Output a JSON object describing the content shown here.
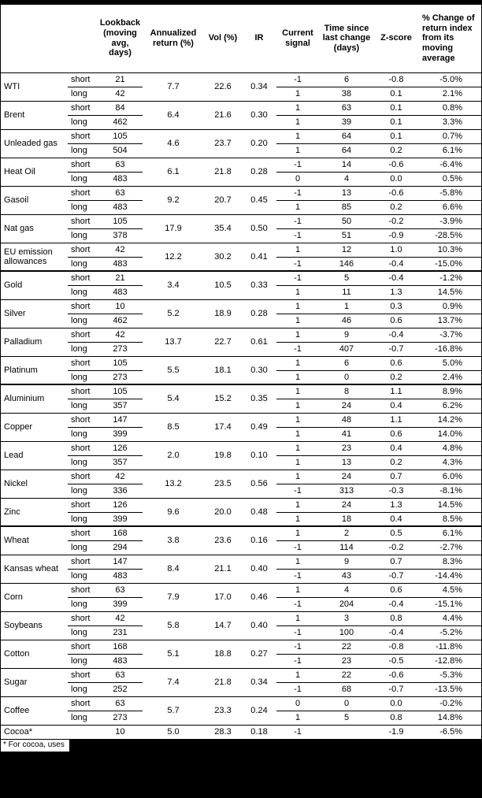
{
  "footnote": "* For cocoa, uses",
  "table": {
    "headers": {
      "commodity": "",
      "leg": "",
      "lookback": "Lookback (moving avg, days)",
      "annualized_return": "Annualized return (%)",
      "vol": "Vol (%)",
      "ir": "IR",
      "current_signal": "Current signal",
      "time_since_last_change": "Time since last change (days)",
      "zscore": "Z-score",
      "pct_change": "% Change of return index from its moving average"
    },
    "groups": [
      [
        {
          "name": "WTI",
          "ret": "7.7",
          "vol": "22.6",
          "ir": "0.34",
          "legs": [
            {
              "label": "short",
              "lookback": "21",
              "signal": "-1",
              "time": "6",
              "z": "-0.8",
              "pct": "-5.0%"
            },
            {
              "label": "long",
              "lookback": "42",
              "signal": "1",
              "time": "38",
              "z": "0.1",
              "pct": "2.1%"
            }
          ]
        },
        {
          "name": "Brent",
          "ret": "6.4",
          "vol": "21.6",
          "ir": "0.30",
          "legs": [
            {
              "label": "short",
              "lookback": "84",
              "signal": "1",
              "time": "63",
              "z": "0.1",
              "pct": "0.8%"
            },
            {
              "label": "long",
              "lookback": "462",
              "signal": "1",
              "time": "39",
              "z": "0.1",
              "pct": "3.3%"
            }
          ]
        },
        {
          "name": "Unleaded gas",
          "ret": "4.6",
          "vol": "23.7",
          "ir": "0.20",
          "legs": [
            {
              "label": "short",
              "lookback": "105",
              "signal": "1",
              "time": "64",
              "z": "0.1",
              "pct": "0.7%"
            },
            {
              "label": "long",
              "lookback": "504",
              "signal": "1",
              "time": "64",
              "z": "0.2",
              "pct": "6.1%"
            }
          ]
        },
        {
          "name": "Heat Oil",
          "ret": "6.1",
          "vol": "21.8",
          "ir": "0.28",
          "legs": [
            {
              "label": "short",
              "lookback": "63",
              "signal": "-1",
              "time": "14",
              "z": "-0.6",
              "pct": "-6.4%"
            },
            {
              "label": "long",
              "lookback": "483",
              "signal": "0",
              "time": "4",
              "z": "0.0",
              "pct": "0.5%"
            }
          ]
        },
        {
          "name": "Gasoil",
          "ret": "9.2",
          "vol": "20.7",
          "ir": "0.45",
          "legs": [
            {
              "label": "short",
              "lookback": "63",
              "signal": "-1",
              "time": "13",
              "z": "-0.6",
              "pct": "-5.8%"
            },
            {
              "label": "long",
              "lookback": "483",
              "signal": "1",
              "time": "85",
              "z": "0.2",
              "pct": "6.6%"
            }
          ]
        },
        {
          "name": "Nat gas",
          "ret": "17.9",
          "vol": "35.4",
          "ir": "0.50",
          "legs": [
            {
              "label": "short",
              "lookback": "105",
              "signal": "-1",
              "time": "50",
              "z": "-0.2",
              "pct": "-3.9%"
            },
            {
              "label": "long",
              "lookback": "378",
              "signal": "-1",
              "time": "51",
              "z": "-0.9",
              "pct": "-28.5%"
            }
          ]
        },
        {
          "name": "EU emission allowances",
          "ret": "12.2",
          "vol": "30.2",
          "ir": "0.41",
          "legs": [
            {
              "label": "short",
              "lookback": "42",
              "signal": "1",
              "time": "12",
              "z": "1.0",
              "pct": "10.3%"
            },
            {
              "label": "long",
              "lookback": "483",
              "signal": "-1",
              "time": "146",
              "z": "-0.4",
              "pct": "-15.0%"
            }
          ]
        }
      ],
      [
        {
          "name": "Gold",
          "ret": "3.4",
          "vol": "10.5",
          "ir": "0.33",
          "legs": [
            {
              "label": "short",
              "lookback": "21",
              "signal": "-1",
              "time": "5",
              "z": "-0.4",
              "pct": "-1.2%"
            },
            {
              "label": "long",
              "lookback": "483",
              "signal": "1",
              "time": "11",
              "z": "1.3",
              "pct": "14.5%"
            }
          ]
        },
        {
          "name": "Silver",
          "ret": "5.2",
          "vol": "18.9",
          "ir": "0.28",
          "legs": [
            {
              "label": "short",
              "lookback": "10",
              "signal": "1",
              "time": "1",
              "z": "0.3",
              "pct": "0.9%"
            },
            {
              "label": "long",
              "lookback": "462",
              "signal": "1",
              "time": "46",
              "z": "0.6",
              "pct": "13.7%"
            }
          ]
        },
        {
          "name": "Palladium",
          "ret": "13.7",
          "vol": "22.7",
          "ir": "0.61",
          "legs": [
            {
              "label": "short",
              "lookback": "42",
              "signal": "1",
              "time": "9",
              "z": "-0.4",
              "pct": "-3.7%"
            },
            {
              "label": "long",
              "lookback": "273",
              "signal": "-1",
              "time": "407",
              "z": "-0.7",
              "pct": "-16.8%"
            }
          ]
        },
        {
          "name": "Platinum",
          "ret": "5.5",
          "vol": "18.1",
          "ir": "0.30",
          "legs": [
            {
              "label": "short",
              "lookback": "105",
              "signal": "1",
              "time": "6",
              "z": "0.6",
              "pct": "5.0%"
            },
            {
              "label": "long",
              "lookback": "273",
              "signal": "1",
              "time": "0",
              "z": "0.2",
              "pct": "2.4%"
            }
          ]
        }
      ],
      [
        {
          "name": "Aluminium",
          "ret": "5.4",
          "vol": "15.2",
          "ir": "0.35",
          "legs": [
            {
              "label": "short",
              "lookback": "105",
              "signal": "1",
              "time": "8",
              "z": "1.1",
              "pct": "8.9%"
            },
            {
              "label": "long",
              "lookback": "357",
              "signal": "1",
              "time": "24",
              "z": "0.4",
              "pct": "6.2%"
            }
          ]
        },
        {
          "name": "Copper",
          "ret": "8.5",
          "vol": "17.4",
          "ir": "0.49",
          "legs": [
            {
              "label": "short",
              "lookback": "147",
              "signal": "1",
              "time": "48",
              "z": "1.1",
              "pct": "14.2%"
            },
            {
              "label": "long",
              "lookback": "399",
              "signal": "1",
              "time": "41",
              "z": "0.6",
              "pct": "14.0%"
            }
          ]
        },
        {
          "name": "Lead",
          "ret": "2.0",
          "vol": "19.8",
          "ir": "0.10",
          "legs": [
            {
              "label": "short",
              "lookback": "126",
              "signal": "1",
              "time": "23",
              "z": "0.4",
              "pct": "4.8%"
            },
            {
              "label": "long",
              "lookback": "357",
              "signal": "1",
              "time": "13",
              "z": "0.2",
              "pct": "4.3%"
            }
          ]
        },
        {
          "name": "Nickel",
          "ret": "13.2",
          "vol": "23.5",
          "ir": "0.56",
          "legs": [
            {
              "label": "short",
              "lookback": "42",
              "signal": "1",
              "time": "24",
              "z": "0.7",
              "pct": "6.0%"
            },
            {
              "label": "long",
              "lookback": "336",
              "signal": "-1",
              "time": "313",
              "z": "-0.3",
              "pct": "-8.1%"
            }
          ]
        },
        {
          "name": "Zinc",
          "ret": "9.6",
          "vol": "20.0",
          "ir": "0.48",
          "legs": [
            {
              "label": "short",
              "lookback": "126",
              "signal": "1",
              "time": "24",
              "z": "1.3",
              "pct": "14.5%"
            },
            {
              "label": "long",
              "lookback": "399",
              "signal": "1",
              "time": "18",
              "z": "0.4",
              "pct": "8.5%"
            }
          ]
        }
      ],
      [
        {
          "name": "Wheat",
          "ret": "3.8",
          "vol": "23.6",
          "ir": "0.16",
          "legs": [
            {
              "label": "short",
              "lookback": "168",
              "signal": "1",
              "time": "2",
              "z": "0.5",
              "pct": "6.1%"
            },
            {
              "label": "long",
              "lookback": "294",
              "signal": "-1",
              "time": "114",
              "z": "-0.2",
              "pct": "-2.7%"
            }
          ]
        },
        {
          "name": "Kansas wheat",
          "ret": "8.4",
          "vol": "21.1",
          "ir": "0.40",
          "legs": [
            {
              "label": "short",
              "lookback": "147",
              "signal": "1",
              "time": "9",
              "z": "0.7",
              "pct": "8.3%"
            },
            {
              "label": "long",
              "lookback": "483",
              "signal": "-1",
              "time": "43",
              "z": "-0.7",
              "pct": "-14.4%"
            }
          ]
        },
        {
          "name": "Corn",
          "ret": "7.9",
          "vol": "17.0",
          "ir": "0.46",
          "legs": [
            {
              "label": "short",
              "lookback": "63",
              "signal": "1",
              "time": "4",
              "z": "0.6",
              "pct": "4.5%"
            },
            {
              "label": "long",
              "lookback": "399",
              "signal": "-1",
              "time": "204",
              "z": "-0.4",
              "pct": "-15.1%"
            }
          ]
        },
        {
          "name": "Soybeans",
          "ret": "5.8",
          "vol": "14.7",
          "ir": "0.40",
          "legs": [
            {
              "label": "short",
              "lookback": "42",
              "signal": "1",
              "time": "3",
              "z": "0.8",
              "pct": "4.4%"
            },
            {
              "label": "long",
              "lookback": "231",
              "signal": "-1",
              "time": "100",
              "z": "-0.4",
              "pct": "-5.2%"
            }
          ]
        },
        {
          "name": "Cotton",
          "ret": "5.1",
          "vol": "18.8",
          "ir": "0.27",
          "legs": [
            {
              "label": "short",
              "lookback": "168",
              "signal": "-1",
              "time": "22",
              "z": "-0.8",
              "pct": "-11.8%"
            },
            {
              "label": "long",
              "lookback": "483",
              "signal": "-1",
              "time": "23",
              "z": "-0.5",
              "pct": "-12.8%"
            }
          ]
        },
        {
          "name": "Sugar",
          "ret": "7.4",
          "vol": "21.8",
          "ir": "0.34",
          "legs": [
            {
              "label": "short",
              "lookback": "63",
              "signal": "1",
              "time": "22",
              "z": "-0.6",
              "pct": "-5.3%"
            },
            {
              "label": "long",
              "lookback": "252",
              "signal": "-1",
              "time": "68",
              "z": "-0.7",
              "pct": "-13.5%"
            }
          ]
        },
        {
          "name": "Coffee",
          "ret": "5.7",
          "vol": "23.3",
          "ir": "0.24",
          "legs": [
            {
              "label": "short",
              "lookback": "63",
              "signal": "0",
              "time": "0",
              "z": "0.0",
              "pct": "-0.2%"
            },
            {
              "label": "long",
              "lookback": "273",
              "signal": "1",
              "time": "5",
              "z": "0.8",
              "pct": "14.8%"
            }
          ]
        },
        {
          "name": "Cocoa*",
          "ret": "5.0",
          "vol": "28.3",
          "ir": "0.18",
          "legs": [
            {
              "label": "",
              "lookback": "10",
              "signal": "-1",
              "time": "",
              "z": "-1.9",
              "pct": "-6.5%"
            }
          ]
        }
      ]
    ]
  }
}
